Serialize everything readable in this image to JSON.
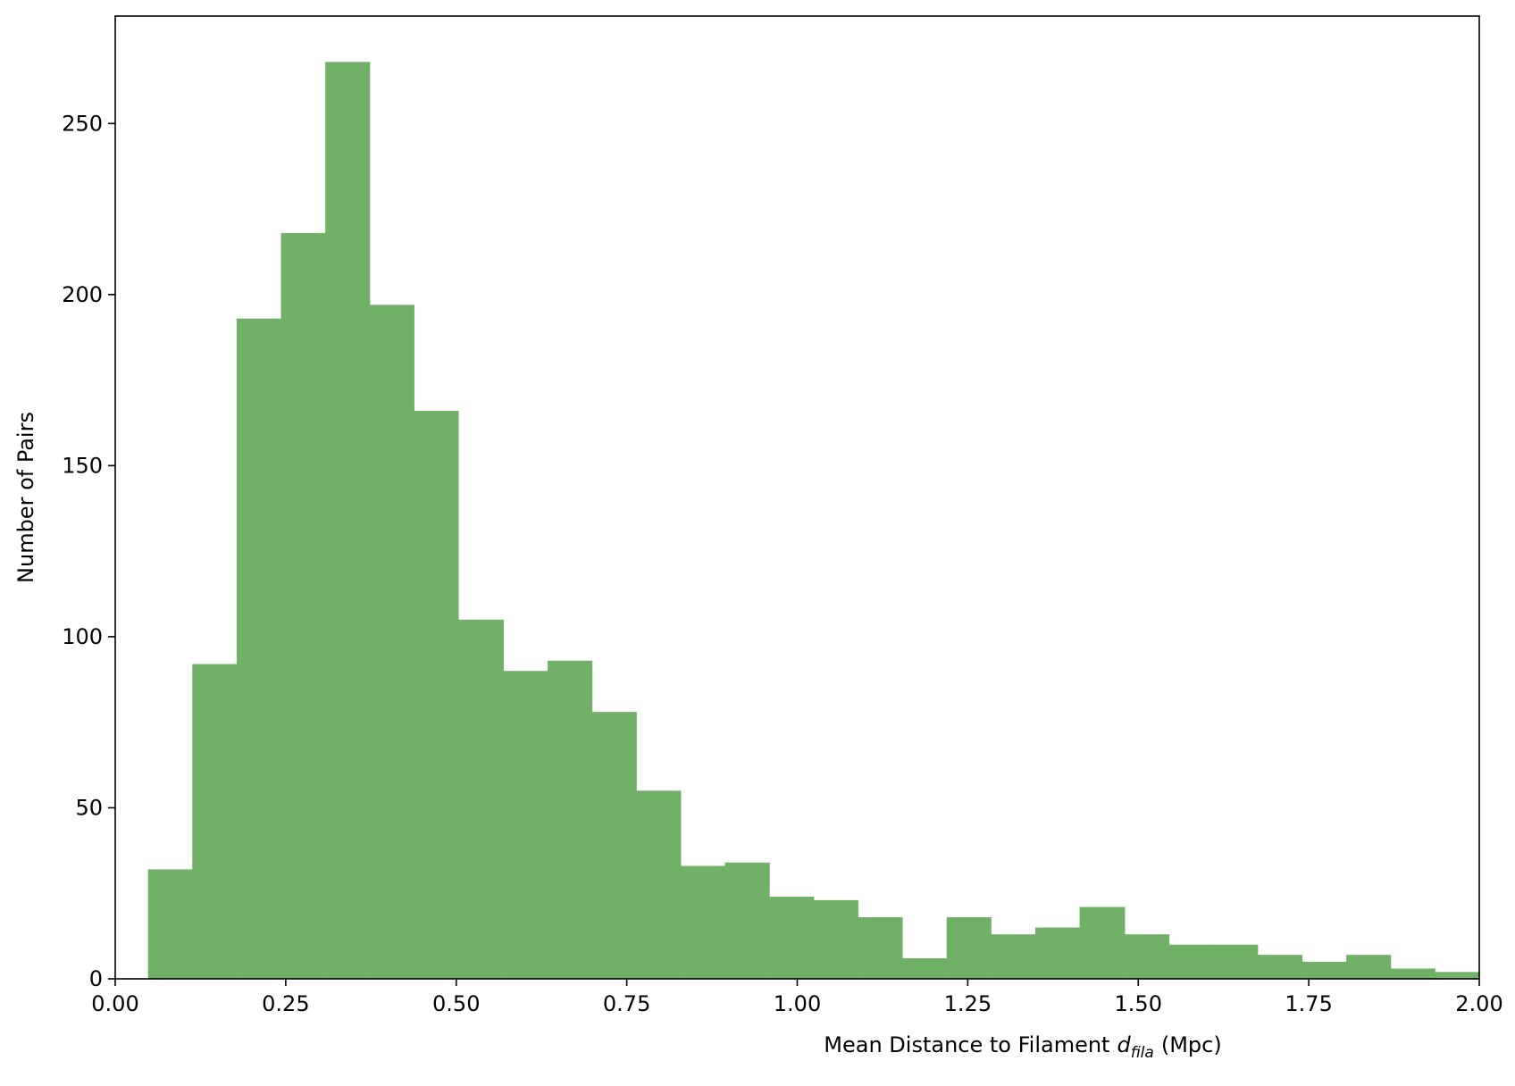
{
  "chart_data": {
    "type": "histogram",
    "xlabel": [
      "Mean Distance to Filament",
      "d",
      "fila",
      "(Mpc)"
    ],
    "ylabel": "Number of Pairs",
    "bins": [
      0.048,
      0.113,
      0.178,
      0.243,
      0.308,
      0.373,
      0.438,
      0.503,
      0.569,
      0.634,
      0.699,
      0.764,
      0.829,
      0.894,
      0.959,
      1.024,
      1.089,
      1.154,
      1.219,
      1.284,
      1.349,
      1.414,
      1.48,
      1.545,
      1.61,
      1.675,
      1.74,
      1.805,
      1.87,
      1.935,
      2.0
    ],
    "values": [
      32,
      92,
      193,
      218,
      268,
      197,
      166,
      105,
      90,
      93,
      78,
      55,
      33,
      34,
      24,
      23,
      18,
      6,
      18,
      13,
      15,
      21,
      13,
      10,
      10,
      7,
      5,
      7,
      3,
      2
    ],
    "color": "#71b067",
    "xlim": [
      0,
      2
    ],
    "xticks": [
      {
        "value": 0,
        "label": "0.00"
      },
      0.25,
      {
        "value": 0.5,
        "label": "0.50"
      },
      0.75,
      {
        "value": 1,
        "label": "1.00"
      },
      1.25,
      {
        "value": 1.5,
        "label": "1.50"
      },
      1.75,
      {
        "value": 2,
        "label": "2.00"
      }
    ],
    "ylim": [
      0,
      281.4
    ],
    "yticks": [
      0,
      50,
      100,
      150,
      200,
      250
    ]
  }
}
